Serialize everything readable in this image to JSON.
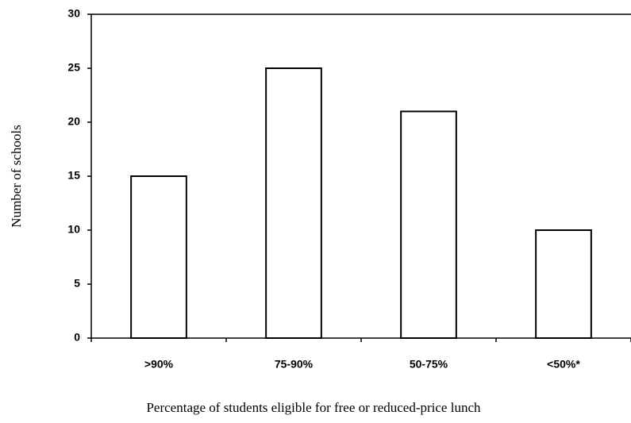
{
  "chart_data": {
    "type": "bar",
    "x_label": "Percentage of students eligible for free or reduced-price lunch",
    "y_label": "Number of schools",
    "categories": [
      ">90%",
      "75-90%",
      "50-75%",
      "<50%*"
    ],
    "values": [
      15,
      25,
      21,
      10
    ],
    "color": "#ffffff",
    "ylim": [
      0,
      30
    ],
    "yticks": [
      0,
      5,
      10,
      15,
      20,
      25,
      30
    ],
    "grid": false
  }
}
